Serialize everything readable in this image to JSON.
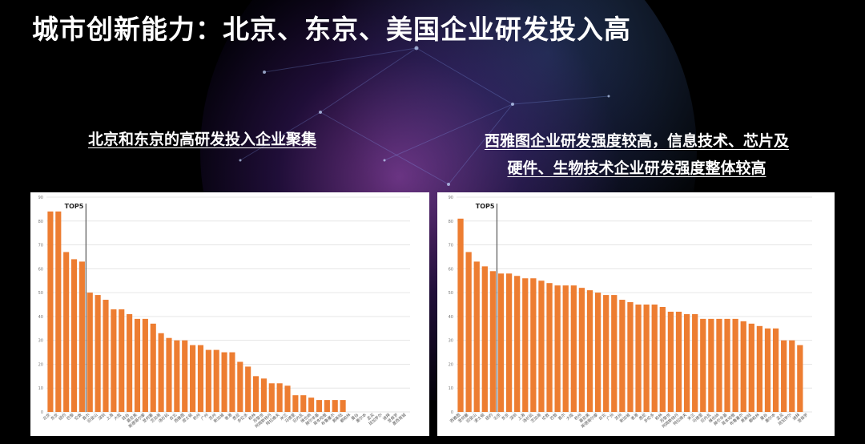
{
  "title": "城市创新能力：北京、东京、美国企业研发投入高",
  "left_subtitle": "北京和东京的高研发投入企业聚集",
  "right_subtitle_line1": "西雅图企业研发强度较高，信息技术、芯片及",
  "right_subtitle_line2": "硬件、生物技术企业研发强度整体较高",
  "colors": {
    "bar": "#ed7d31",
    "background": "#000000",
    "panel": "#ffffff"
  },
  "chart_data": [
    {
      "type": "bar",
      "marker_label": "TOP5",
      "marker_after_index": 4,
      "ylim": [
        0,
        90
      ],
      "yticks": [
        0,
        10,
        20,
        30,
        40,
        50,
        60,
        70,
        80,
        90
      ],
      "categories": [
        "北京",
        "东京",
        "纽约",
        "巴黎",
        "伦敦",
        "首尔",
        "旧金山",
        "深圳",
        "上海",
        "大阪",
        "硅谷",
        "慕尼黑",
        "斯德哥尔摩",
        "圣何塞",
        "芝加哥",
        "洛杉矶",
        "台北",
        "西雅图",
        "波士顿",
        "杭州",
        "广州",
        "苏州",
        "新加坡",
        "香港",
        "悉尼",
        "多伦多",
        "柏林",
        "苏黎世",
        "阿姆斯特丹",
        "特拉维夫",
        "米兰",
        "马德里",
        "日内瓦",
        "维也纳",
        "赫尔辛基",
        "哥本哈根",
        "布鲁塞尔",
        "奥斯陆",
        "都柏林",
        "曼谷",
        "墨尔本",
        "孟买",
        "班加罗尔",
        "迪拜",
        "圣保罗",
        "墨西哥城"
      ],
      "values": [
        84,
        84,
        67,
        64,
        63,
        50,
        49,
        47,
        43,
        43,
        41,
        39,
        39,
        37,
        33,
        31,
        30,
        30,
        28,
        28,
        26,
        26,
        25,
        25,
        21,
        19,
        15,
        14,
        12,
        12,
        11,
        7,
        7,
        6,
        5,
        5,
        5,
        5,
        0,
        0,
        0,
        0,
        0,
        0,
        0,
        0
      ]
    },
    {
      "type": "bar",
      "marker_label": "TOP5",
      "marker_after_index": 4,
      "ylim": [
        0,
        90
      ],
      "yticks": [
        0,
        10,
        20,
        30,
        40,
        50,
        60,
        70,
        80,
        90
      ],
      "categories": [
        "西雅图",
        "圣何塞",
        "旧金山",
        "波士顿",
        "纽约",
        "北京",
        "东京",
        "深圳",
        "上海",
        "洛杉矶",
        "芝加哥",
        "伦敦",
        "巴黎",
        "首尔",
        "大阪",
        "杭州",
        "慕尼黑",
        "斯德哥尔摩",
        "台北",
        "广州",
        "苏州",
        "新加坡",
        "香港",
        "悉尼",
        "多伦多",
        "柏林",
        "苏黎世",
        "阿姆斯特丹",
        "特拉维夫",
        "米兰",
        "马德里",
        "日内瓦",
        "维也纳",
        "赫尔辛基",
        "哥本哈根",
        "布鲁塞尔",
        "奥斯陆",
        "都柏林",
        "曼谷",
        "墨尔本",
        "孟买",
        "班加罗尔",
        "迪拜",
        "圣保罗"
      ],
      "values": [
        81,
        67,
        63,
        61,
        59,
        58,
        58,
        57,
        56,
        56,
        55,
        54,
        53,
        53,
        53,
        52,
        51,
        50,
        49,
        49,
        47,
        46,
        45,
        45,
        45,
        44,
        42,
        42,
        41,
        41,
        39,
        39,
        39,
        39,
        39,
        38,
        37,
        36,
        35,
        35,
        30,
        30,
        28,
        0
      ]
    }
  ]
}
